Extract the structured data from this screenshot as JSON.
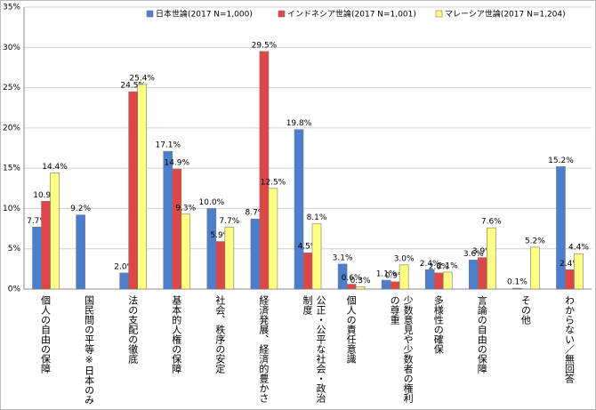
{
  "chart_data": {
    "type": "bar",
    "categories": [
      "個人の自由の保障",
      "国民間の平等※日本のみ",
      "法の支配の徹底",
      "基本的人権の保障",
      "社会、秩序の安定",
      "経済発展、経済的豊かさ",
      "公正・公平な社会・政治制度",
      "個人の責任意識",
      "少数意見や少数者の権利の尊重",
      "多様性の確保",
      "言論の自由の保障",
      "その他",
      "わからない／無回答"
    ],
    "series": [
      {
        "name": "日本世論(2017 N=1,000)",
        "color": "#4a7fd0",
        "values": [
          7.7,
          9.2,
          2.0,
          17.1,
          10.0,
          8.7,
          19.8,
          3.1,
          1.1,
          2.4,
          3.6,
          0.1,
          15.2
        ],
        "value_labels": [
          "7.7%",
          "9.2%",
          "2.0%",
          "17.1%",
          "10.0%",
          "8.7%",
          "19.8%",
          "3.1%",
          "1.1%",
          "2.4%",
          "3.6%",
          "0.1%",
          "15.2%"
        ]
      },
      {
        "name": "インドネシア世論(2017 N=1,001)",
        "color": "#e04646",
        "values": [
          10.9,
          null,
          24.5,
          14.9,
          5.9,
          29.5,
          4.5,
          0.6,
          0.9,
          2.0,
          3.9,
          null,
          2.4
        ],
        "value_labels": [
          "10.9%",
          null,
          "24.5%",
          "14.9%",
          "5.9%",
          "29.5%",
          "4.5%",
          "0.6%",
          "0.9%",
          "2.0%",
          "3.9%",
          null,
          "2.4%"
        ]
      },
      {
        "name": "マレーシア世論(2017 N=1,204)",
        "color": "#ffff80",
        "values": [
          14.4,
          null,
          25.4,
          9.3,
          7.7,
          12.5,
          8.1,
          0.3,
          3.0,
          2.1,
          7.6,
          5.2,
          4.4
        ],
        "value_labels": [
          "14.4%",
          null,
          "25.4%",
          "9.3%",
          "7.7%",
          "12.5%",
          "8.1%",
          "0.3%",
          "3.0%",
          "2.1%",
          "7.6%",
          "5.2%",
          "4.4%"
        ]
      }
    ],
    "ylim": [
      0,
      35
    ],
    "yticks": [
      {
        "value": 0,
        "label": "0%"
      },
      {
        "value": 5,
        "label": "5%"
      },
      {
        "value": 10,
        "label": "10%"
      },
      {
        "value": 15,
        "label": "15%"
      },
      {
        "value": 20,
        "label": "20%"
      },
      {
        "value": 25,
        "label": "25%"
      },
      {
        "value": 30,
        "label": "30%"
      },
      {
        "value": 35,
        "label": "35%"
      }
    ],
    "grid": true
  }
}
